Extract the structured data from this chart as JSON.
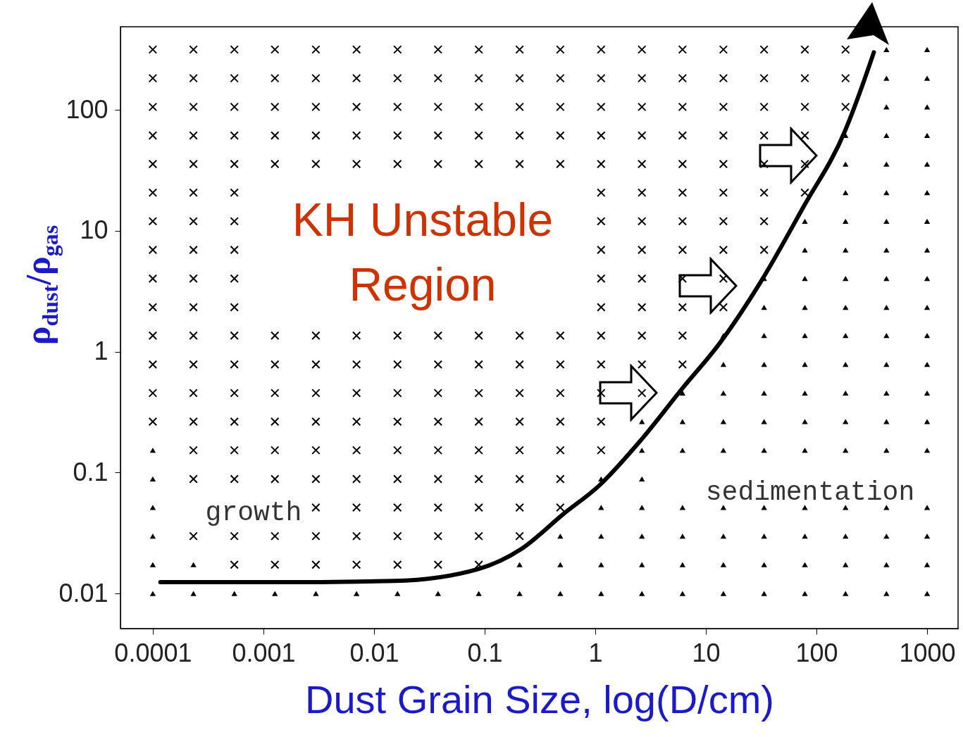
{
  "chart_data": {
    "type": "scatter",
    "xlabel": "Dust Grain Size, log(D/cm)",
    "ylabel": "ρ$_{dust}$/ρ$_{gas}$",
    "log": "xy",
    "xlim": [
      5.1e-05,
      1905
    ],
    "ylim": [
      0.00512,
      488
    ],
    "xticks": [
      0.0001,
      0.001,
      0.01,
      0.1,
      1,
      10,
      100,
      1000
    ],
    "yticks": [
      0.01,
      0.1,
      1,
      10,
      100
    ],
    "annotations": [
      "KH Unstable\nRegion",
      "growth",
      "sedimentation"
    ],
    "series": [
      {
        "type": "line",
        "color": "#000000",
        "x": [
          0.000117,
          0.00147,
          0.0153,
          0.0889,
          0.214,
          0.516,
          1.08,
          2.59,
          6.25,
          13.0,
          31.4,
          75.7,
          182,
          260,
          330
        ],
        "values": [
          0.0124,
          0.0124,
          0.0127,
          0.016,
          0.0233,
          0.0455,
          0.0778,
          0.186,
          0.508,
          1.14,
          3.8,
          15.6,
          67.9,
          160,
          300
        ]
      },
      {
        "marker": "triangle",
        "color": "#000000",
        "x": [
          0.0001,
          0.000233,
          0.000546,
          0.00127,
          0.00298,
          0.00695,
          0.0163,
          0.0001,
          0.000233,
          0.0001,
          0.0001,
          0.0001,
          0.0001
        ],
        "values": [
          0.01,
          0.01,
          0.01,
          0.01,
          0.01,
          0.01,
          0.01,
          0.0173,
          0.0173,
          0.0298,
          0.0514,
          0.0885,
          0.153
        ]
      },
      {
        "marker": "triangle",
        "color": "#000000",
        "x": [
          0.0379,
          0.0885,
          0.207,
          0.483,
          1.13,
          2.64,
          6.15,
          14.4,
          33.6,
          78.5,
          183,
          429,
          1000
        ],
        "values": [
          0.01,
          0.01,
          0.01,
          0.01,
          0.01,
          0.01,
          0.01,
          0.01,
          0.01,
          0.01,
          0.01,
          0.01,
          0.01
        ]
      },
      {
        "marker": "triangle",
        "color": "#000000",
        "x": [
          0.207,
          0.483,
          1.13,
          2.64,
          6.15,
          14.4,
          33.6,
          78.5,
          183,
          429,
          1000
        ],
        "values": [
          0.0173,
          0.0173,
          0.0173,
          0.0173,
          0.0173,
          0.0173,
          0.0173,
          0.0173,
          0.0173,
          0.0173,
          0.0173
        ]
      },
      {
        "marker": "triangle",
        "color": "#000000",
        "x": [
          0.483,
          1.13,
          2.64,
          6.15,
          14.4,
          33.6,
          78.5,
          183,
          429,
          1000
        ],
        "values": [
          0.0298,
          0.0298,
          0.0298,
          0.0298,
          0.0298,
          0.0298,
          0.0298,
          0.0298,
          0.0298,
          0.0298
        ]
      },
      {
        "marker": "triangle",
        "color": "#000000",
        "x": [
          1.13,
          2.64,
          6.15,
          14.4,
          33.6,
          78.5,
          183,
          429,
          1000
        ],
        "values": [
          0.0514,
          0.0514,
          0.0514,
          0.0514,
          0.0514,
          0.0514,
          0.0514,
          0.0514,
          0.0514
        ]
      },
      {
        "marker": "triangle",
        "color": "#000000",
        "x": [
          1.13,
          2.64
        ],
        "values": [
          0.0885,
          0.0885
        ]
      },
      {
        "marker": "triangle",
        "color": "#000000",
        "x": [
          2.64,
          6.15,
          14.4,
          33.6,
          78.5,
          183,
          429,
          1000
        ],
        "values": [
          0.153,
          0.153,
          0.153,
          0.153,
          0.153,
          0.153,
          0.153,
          0.153
        ]
      },
      {
        "marker": "triangle",
        "color": "#000000",
        "x": [
          2.64,
          6.15,
          14.4,
          33.6,
          78.5,
          183,
          429,
          1000
        ],
        "values": [
          0.264,
          0.264,
          0.264,
          0.264,
          0.264,
          0.264,
          0.264,
          0.264
        ]
      },
      {
        "marker": "triangle",
        "color": "#000000",
        "x": [
          6.15,
          14.4,
          33.6,
          78.5,
          183,
          429,
          1000
        ],
        "values": [
          0.455,
          0.455,
          0.455,
          0.455,
          0.455,
          0.455,
          0.455
        ]
      },
      {
        "marker": "triangle",
        "color": "#000000",
        "x": [
          14.4,
          33.6,
          78.5,
          183,
          429,
          1000,
          14.4,
          33.6,
          78.5,
          183,
          429,
          1000
        ],
        "values": [
          0.785,
          0.785,
          0.785,
          0.785,
          0.785,
          0.785,
          1.36,
          1.36,
          1.36,
          1.36,
          1.36,
          1.36
        ]
      },
      {
        "marker": "triangle",
        "color": "#000000",
        "x": [
          33.6,
          78.5,
          183,
          429,
          1000,
          33.6,
          78.5,
          183,
          429,
          1000
        ],
        "values": [
          2.33,
          2.33,
          2.33,
          2.33,
          2.33,
          4.03,
          4.03,
          4.03,
          4.03,
          4.03
        ]
      },
      {
        "marker": "triangle",
        "color": "#000000",
        "x": [
          78.5,
          183,
          429,
          1000,
          78.5,
          183,
          429,
          1000
        ],
        "values": [
          6.95,
          6.95,
          6.95,
          6.95,
          12.0,
          12.0,
          12.0,
          12.0
        ]
      },
      {
        "marker": "triangle",
        "color": "#000000",
        "x": [
          183,
          429,
          1000,
          183,
          429,
          1000,
          183,
          429,
          1000
        ],
        "values": [
          20.7,
          20.7,
          20.7,
          35.7,
          35.7,
          35.7,
          61.5,
          61.5,
          61.5
        ]
      },
      {
        "marker": "triangle",
        "color": "#000000",
        "x": [
          429,
          1000,
          429,
          1000,
          429,
          1000
        ],
        "values": [
          106,
          106,
          183,
          183,
          316,
          316
        ]
      },
      {
        "marker": "cross",
        "color": "#000000",
        "x": [
          0.000546,
          0.00127,
          0.00298,
          0.00695,
          0.0163,
          0.0379,
          0.0885
        ],
        "values": [
          0.0173,
          0.0173,
          0.0173,
          0.0173,
          0.0173,
          0.0173,
          0.0173
        ]
      },
      {
        "marker": "cross",
        "color": "#000000",
        "x": [
          0.000233,
          0.000546,
          0.00127,
          0.00298,
          0.00695,
          0.0163,
          0.0379,
          0.0885,
          0.207
        ],
        "values": [
          0.0298,
          0.0298,
          0.0298,
          0.0298,
          0.0298,
          0.0298,
          0.0298,
          0.0298,
          0.0298
        ]
      },
      {
        "marker": "cross",
        "color": "#000000",
        "x": [
          0.00298,
          0.00695,
          0.0163,
          0.0379,
          0.0885,
          0.207,
          0.483
        ],
        "values": [
          0.0514,
          0.0514,
          0.0514,
          0.0514,
          0.0514,
          0.0514,
          0.0514
        ]
      },
      {
        "marker": "cross",
        "color": "#000000",
        "x": [
          0.000233,
          0.000546,
          0.00127,
          0.00298,
          0.00695,
          0.0163,
          0.0379,
          0.0885,
          0.207,
          0.483
        ],
        "values": [
          0.0885,
          0.0885,
          0.0885,
          0.0885,
          0.0885,
          0.0885,
          0.0885,
          0.0885,
          0.0885,
          0.0885
        ]
      },
      {
        "marker": "cross",
        "color": "#000000",
        "x": [
          0.000233,
          0.000546,
          0.00127,
          0.00298,
          0.00695,
          0.0163,
          0.0379,
          0.0885,
          0.207,
          0.483,
          1.13
        ],
        "values": [
          0.153,
          0.153,
          0.153,
          0.153,
          0.153,
          0.153,
          0.153,
          0.153,
          0.153,
          0.153,
          0.153
        ]
      },
      {
        "marker": "cross",
        "color": "#000000",
        "x": [
          0.0001,
          0.000233,
          0.000546,
          0.00127,
          0.00298,
          0.00695,
          0.0163,
          0.0379,
          0.0885,
          0.207,
          0.483,
          1.13
        ],
        "values": [
          0.264,
          0.264,
          0.264,
          0.264,
          0.264,
          0.264,
          0.264,
          0.264,
          0.264,
          0.264,
          0.264,
          0.264
        ]
      },
      {
        "marker": "cross",
        "color": "#000000",
        "x": [
          0.0001,
          0.000233,
          0.000546,
          0.00127,
          0.00298,
          0.00695,
          0.0163,
          0.0379,
          0.0885,
          0.207,
          0.483,
          1.13,
          2.64
        ],
        "values": [
          0.455,
          0.455,
          0.455,
          0.455,
          0.455,
          0.455,
          0.455,
          0.455,
          0.455,
          0.455,
          0.455,
          0.455,
          0.455
        ]
      },
      {
        "marker": "cross",
        "color": "#000000",
        "x": [
          0.0001,
          0.000233,
          0.000546,
          0.00127,
          0.00298,
          0.00695,
          0.0163,
          0.0379,
          0.0885,
          0.207,
          0.483,
          1.13,
          2.64,
          6.15
        ],
        "values": [
          0.785,
          0.785,
          0.785,
          0.785,
          0.785,
          0.785,
          0.785,
          0.785,
          0.785,
          0.785,
          0.785,
          0.785,
          0.785,
          0.785
        ]
      },
      {
        "marker": "cross",
        "color": "#000000",
        "x": [
          0.0001,
          0.000233,
          0.000546,
          0.00127,
          0.00298,
          0.00695,
          0.0163,
          0.0379,
          0.0885,
          0.207,
          0.483,
          1.13,
          2.64,
          6.15
        ],
        "values": [
          1.36,
          1.36,
          1.36,
          1.36,
          1.36,
          1.36,
          1.36,
          1.36,
          1.36,
          1.36,
          1.36,
          1.36,
          1.36,
          1.36
        ]
      },
      {
        "marker": "cross",
        "color": "#000000",
        "x": [
          0.0001,
          0.000233,
          0.000546,
          1.13,
          2.64,
          6.15,
          14.4,
          0.0001,
          0.000233,
          0.000546,
          1.13,
          2.64,
          6.15,
          14.4
        ],
        "values": [
          2.33,
          2.33,
          2.33,
          2.33,
          2.33,
          2.33,
          2.33,
          4.03,
          4.03,
          4.03,
          4.03,
          4.03,
          4.03,
          4.03
        ]
      },
      {
        "marker": "cross",
        "color": "#000000",
        "x": [
          0.0001,
          0.000233,
          0.000546,
          1.13,
          2.64,
          6.15,
          14.4,
          33.6,
          0.0001,
          0.000233,
          0.000546,
          1.13,
          2.64,
          6.15,
          14.4,
          33.6
        ],
        "values": [
          6.95,
          6.95,
          6.95,
          6.95,
          6.95,
          6.95,
          6.95,
          6.95,
          12.0,
          12.0,
          12.0,
          12.0,
          12.0,
          12.0,
          12.0,
          12.0
        ]
      },
      {
        "marker": "cross",
        "color": "#000000",
        "x": [
          0.0001,
          0.000233,
          0.000546,
          1.13,
          2.64,
          6.15,
          14.4,
          33.6,
          78.5
        ],
        "values": [
          20.7,
          20.7,
          20.7,
          20.7,
          20.7,
          20.7,
          20.7,
          20.7,
          20.7
        ]
      },
      {
        "marker": "cross",
        "color": "#000000",
        "x": [
          0.0001,
          0.000233,
          0.000546,
          0.00127,
          0.00298,
          0.00695,
          0.0163,
          0.0379,
          0.0885,
          0.207,
          0.483,
          1.13,
          2.64,
          6.15,
          14.4,
          33.6,
          78.5
        ],
        "values": [
          35.7,
          35.7,
          35.7,
          35.7,
          35.7,
          35.7,
          35.7,
          35.7,
          35.7,
          35.7,
          35.7,
          35.7,
          35.7,
          35.7,
          35.7,
          35.7,
          35.7
        ]
      },
      {
        "marker": "cross",
        "color": "#000000",
        "x": [
          0.0001,
          0.000233,
          0.000546,
          0.00127,
          0.00298,
          0.00695,
          0.0163,
          0.0379,
          0.0885,
          0.207,
          0.483,
          1.13,
          2.64,
          6.15,
          14.4,
          33.6,
          78.5
        ],
        "values": [
          61.5,
          61.5,
          61.5,
          61.5,
          61.5,
          61.5,
          61.5,
          61.5,
          61.5,
          61.5,
          61.5,
          61.5,
          61.5,
          61.5,
          61.5,
          61.5,
          61.5
        ]
      },
      {
        "marker": "cross",
        "color": "#000000",
        "x": [
          0.0001,
          0.000233,
          0.000546,
          0.00127,
          0.00298,
          0.00695,
          0.0163,
          0.0379,
          0.0885,
          0.207,
          0.483,
          1.13,
          2.64,
          6.15,
          14.4,
          33.6,
          78.5,
          183
        ],
        "values": [
          106,
          106,
          106,
          106,
          106,
          106,
          106,
          106,
          106,
          106,
          106,
          106,
          106,
          106,
          106,
          106,
          106,
          106
        ]
      },
      {
        "marker": "cross",
        "color": "#000000",
        "x": [
          0.0001,
          0.000233,
          0.000546,
          0.00127,
          0.00298,
          0.00695,
          0.0163,
          0.0379,
          0.0885,
          0.207,
          0.483,
          1.13,
          2.64,
          6.15,
          14.4,
          33.6,
          78.5,
          183
        ],
        "values": [
          183,
          183,
          183,
          183,
          183,
          183,
          183,
          183,
          183,
          183,
          183,
          183,
          183,
          183,
          183,
          183,
          183,
          183
        ]
      },
      {
        "marker": "cross",
        "color": "#000000",
        "x": [
          0.0001,
          0.000233,
          0.000546,
          0.00127,
          0.00298,
          0.00695,
          0.0163,
          0.0379,
          0.0885,
          0.207,
          0.483,
          1.13,
          2.64,
          6.15,
          14.4,
          33.6,
          78.5,
          183
        ],
        "values": [
          316,
          316,
          316,
          316,
          316,
          316,
          316,
          316,
          316,
          316,
          316,
          316,
          316,
          316,
          316,
          316,
          316,
          316
        ]
      }
    ]
  }
}
